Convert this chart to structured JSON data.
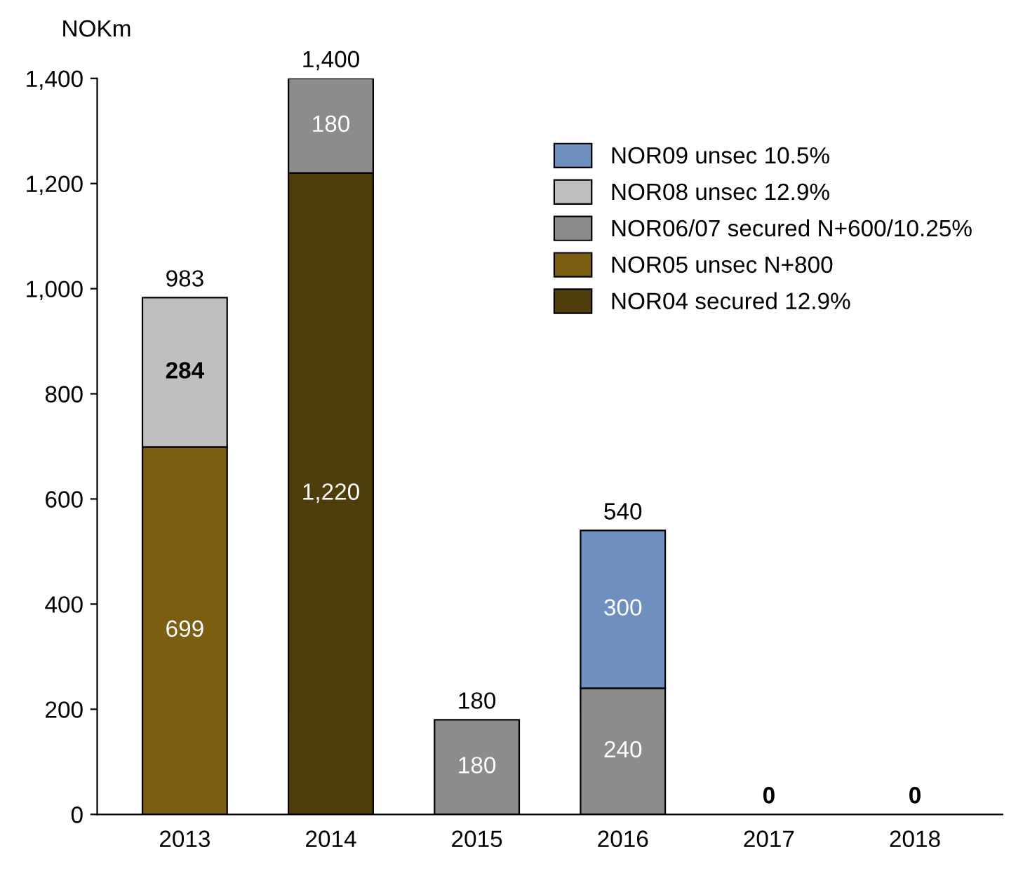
{
  "chart_data": {
    "type": "bar",
    "stacked": true,
    "ylabel": "NOKm",
    "categories": [
      "2013",
      "2014",
      "2015",
      "2016",
      "2017",
      "2018"
    ],
    "series": [
      {
        "name": "NOR04 secured 12.9%",
        "color": "#4f3d0c",
        "values": [
          null,
          1220,
          null,
          null,
          null,
          null
        ],
        "value_labels": [
          null,
          "1,220",
          null,
          null,
          null,
          null
        ]
      },
      {
        "name": "NOR05 unsec N+800",
        "color": "#7b5e12",
        "values": [
          699,
          null,
          null,
          null,
          null,
          null
        ],
        "value_labels": [
          "699",
          null,
          null,
          null,
          null,
          null
        ]
      },
      {
        "name": "NOR06/07 secured N+600/10.25%",
        "color": "#8c8c8c",
        "values": [
          null,
          180,
          180,
          240,
          null,
          null
        ],
        "value_labels": [
          null,
          "180",
          "180",
          "240",
          null,
          null
        ]
      },
      {
        "name": "NOR08 unsec 12.9%",
        "color": "#bfbfbf",
        "values": [
          284,
          null,
          null,
          null,
          null,
          null
        ],
        "value_labels": [
          "284",
          null,
          null,
          null,
          null,
          null
        ]
      },
      {
        "name": "NOR09 unsec 10.5%",
        "color": "#6f8fbf",
        "values": [
          null,
          null,
          null,
          300,
          null,
          null
        ],
        "value_labels": [
          null,
          null,
          null,
          "300",
          null,
          null
        ]
      }
    ],
    "totals": [
      "983",
      "1,400",
      "180",
      "540",
      "0",
      "0"
    ],
    "ylim": [
      0,
      1400
    ],
    "yticks": [
      0,
      200,
      400,
      600,
      800,
      {
        "value": 1000,
        "label": "1,000"
      },
      {
        "value": 1200,
        "label": "1,200"
      },
      {
        "value": 1400,
        "label": "1,400"
      }
    ],
    "grid": false,
    "legend": "top right"
  }
}
